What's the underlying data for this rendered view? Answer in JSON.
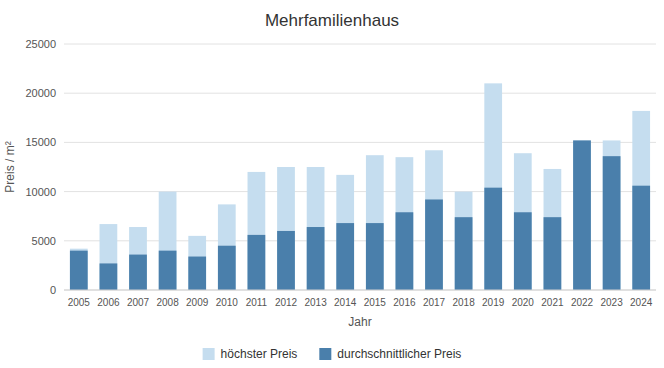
{
  "chart_data": {
    "type": "bar",
    "title": "Mehrfamilienhaus",
    "xlabel": "Jahr",
    "ylabel": "Preis / m²",
    "categories": [
      "2005",
      "2006",
      "2007",
      "2008",
      "2009",
      "2010",
      "2011",
      "2012",
      "2013",
      "2014",
      "2015",
      "2016",
      "2017",
      "2018",
      "2019",
      "2020",
      "2021",
      "2022",
      "2023",
      "2024"
    ],
    "series": [
      {
        "name": "höchster Preis",
        "color": "#c5ddef",
        "values": [
          4200,
          6700,
          6400,
          10000,
          5500,
          8700,
          12000,
          12500,
          12500,
          11700,
          13700,
          13500,
          14200,
          10000,
          21000,
          13900,
          12300,
          15200,
          15200,
          18200
        ]
      },
      {
        "name": "durchschnittlicher Preis",
        "color": "#4a7fab",
        "values": [
          4000,
          2700,
          3600,
          4000,
          3400,
          4500,
          5600,
          6000,
          6400,
          6800,
          6800,
          7900,
          9200,
          7400,
          10400,
          7900,
          7400,
          15200,
          13600,
          10600
        ]
      }
    ],
    "ylim": [
      0,
      25000
    ],
    "yticks": [
      0,
      5000,
      10000,
      15000,
      20000,
      25000
    ],
    "grid": true,
    "legend": "bottom",
    "stacked": false
  }
}
